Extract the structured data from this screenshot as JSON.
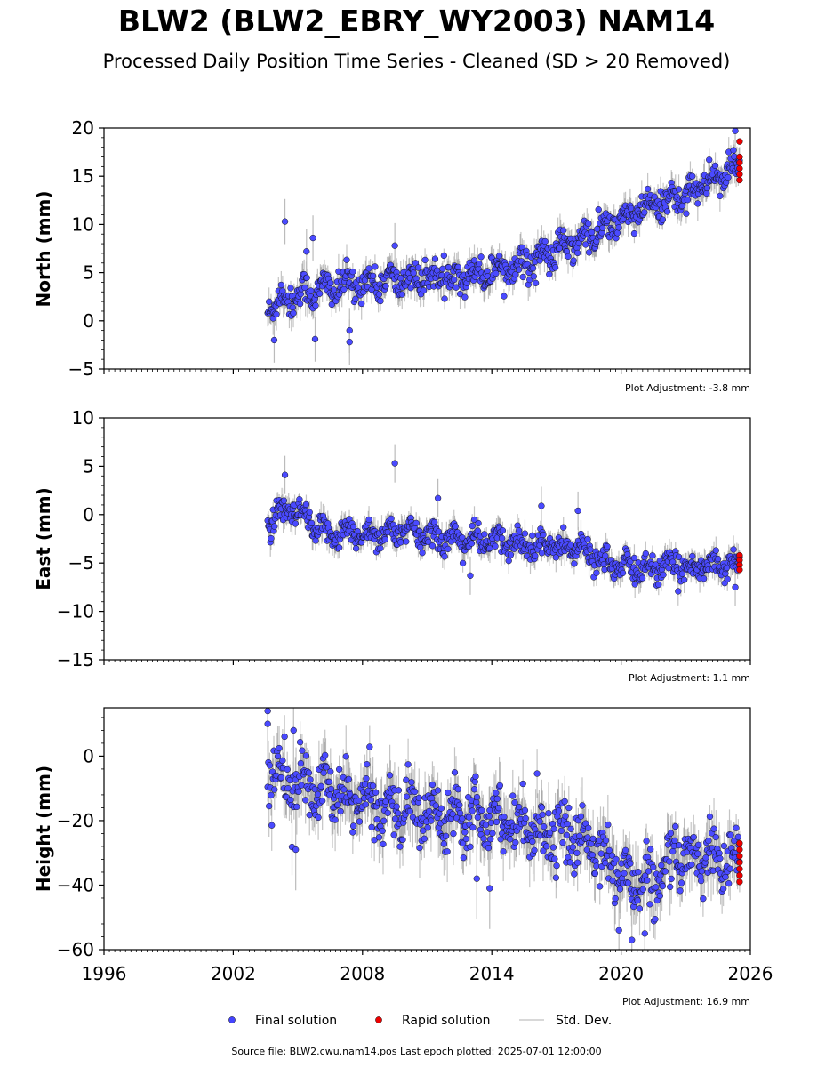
{
  "title": "BLW2 (BLW2_EBRY_WY2003) NAM14",
  "subtitle": "Processed Daily Position Time Series - Cleaned (SD > 20 Removed)",
  "source_note": "Source file: BLW2.cwu.nam14.pos  Last epoch plotted: 2025-07-01 12:00:00",
  "legend": {
    "placement": "bottom-center",
    "items": [
      {
        "label": "Final solution",
        "color": "#4444ff",
        "kind": "dot"
      },
      {
        "label": "Rapid solution",
        "color": "#ee0000",
        "kind": "dot"
      },
      {
        "label": "Std. Dev.",
        "color": "#cccccc",
        "kind": "line"
      }
    ]
  },
  "colors": {
    "final": "#4a4aff",
    "rapid": "#ee0000",
    "errorbar": "#bbbbbb",
    "outline": "#111111"
  },
  "chart_data": [
    {
      "type": "scatter",
      "ylabel": "North (mm)",
      "xlim": [
        1996,
        2026
      ],
      "ylim": [
        -5,
        20
      ],
      "yticks": [
        -5,
        0,
        5,
        10,
        15,
        20
      ],
      "xticks": [
        1996,
        2002,
        2008,
        2014,
        2020,
        2026
      ],
      "show_x_tick_labels": false,
      "grid": false,
      "adjustment_text": "Plot Adjustment: -3.8 mm",
      "final_trend": [
        [
          2003.6,
          1.5
        ],
        [
          2005.0,
          2.8
        ],
        [
          2007.5,
          3.8
        ],
        [
          2010.0,
          4.3
        ],
        [
          2012.0,
          4.6
        ],
        [
          2014.0,
          5.2
        ],
        [
          2016.0,
          6.3
        ],
        [
          2017.8,
          8.0
        ],
        [
          2019.5,
          9.8
        ],
        [
          2021.0,
          11.5
        ],
        [
          2023.0,
          13.2
        ],
        [
          2025.5,
          16.0
        ]
      ],
      "final_scatter_sd": 1.3,
      "final_outliers": [
        [
          2004.4,
          10.3
        ],
        [
          2005.4,
          7.2
        ],
        [
          2005.7,
          8.6
        ],
        [
          2005.8,
          -1.9
        ],
        [
          2007.4,
          -2.2
        ],
        [
          2007.4,
          -1.0
        ],
        [
          2009.5,
          7.8
        ],
        [
          2025.3,
          19.7
        ],
        [
          2003.9,
          -2.0
        ]
      ],
      "rapid_points": [
        [
          2025.5,
          18.6
        ],
        [
          2025.5,
          17.0
        ],
        [
          2025.5,
          16.4
        ],
        [
          2025.5,
          15.8
        ],
        [
          2025.5,
          15.2
        ],
        [
          2025.5,
          14.6
        ]
      ]
    },
    {
      "type": "scatter",
      "ylabel": "East (mm)",
      "xlim": [
        1996,
        2026
      ],
      "ylim": [
        -15,
        10
      ],
      "yticks": [
        -15,
        -10,
        -5,
        0,
        5,
        10
      ],
      "xticks": [
        1996,
        2002,
        2008,
        2014,
        2020,
        2026
      ],
      "show_x_tick_labels": false,
      "grid": false,
      "adjustment_text": "Plot Adjustment: 1.1 mm",
      "final_trend": [
        [
          2003.6,
          -0.8
        ],
        [
          2004.8,
          0.5
        ],
        [
          2006.0,
          -1.8
        ],
        [
          2008.0,
          -2.0
        ],
        [
          2010.0,
          -1.8
        ],
        [
          2012.0,
          -2.5
        ],
        [
          2014.0,
          -2.8
        ],
        [
          2016.0,
          -3.0
        ],
        [
          2018.0,
          -3.5
        ],
        [
          2020.0,
          -5.5
        ],
        [
          2022.0,
          -5.5
        ],
        [
          2025.5,
          -5.0
        ]
      ],
      "final_scatter_sd": 1.1,
      "final_outliers": [
        [
          2004.4,
          4.1
        ],
        [
          2009.5,
          5.3
        ],
        [
          2011.5,
          1.7
        ],
        [
          2018.0,
          0.4
        ],
        [
          2016.3,
          0.9
        ],
        [
          2013.0,
          -6.3
        ],
        [
          2025.3,
          -7.5
        ]
      ],
      "rapid_points": [
        [
          2025.5,
          -4.2
        ],
        [
          2025.5,
          -4.7
        ],
        [
          2025.5,
          -5.2
        ],
        [
          2025.5,
          -5.7
        ]
      ]
    },
    {
      "type": "scatter",
      "ylabel": "Height (mm)",
      "xlim": [
        1996,
        2026
      ],
      "ylim": [
        -60,
        15
      ],
      "yticks": [
        -60,
        -40,
        -20,
        0
      ],
      "xticks": [
        1996,
        2002,
        2008,
        2014,
        2020,
        2026
      ],
      "xtick_labels": [
        "1996",
        "2002",
        "2008",
        "2014",
        "2020",
        "2026"
      ],
      "show_x_tick_labels": true,
      "grid": false,
      "adjustment_text": "Plot Adjustment: 16.9 mm",
      "final_trend": [
        [
          2003.6,
          -5.0
        ],
        [
          2005.0,
          -9.0
        ],
        [
          2008.0,
          -14.0
        ],
        [
          2011.0,
          -18.0
        ],
        [
          2013.0,
          -17.0
        ],
        [
          2015.0,
          -20.0
        ],
        [
          2017.0,
          -24.0
        ],
        [
          2019.0,
          -28.0
        ],
        [
          2020.0,
          -38.0
        ],
        [
          2021.5,
          -40.0
        ],
        [
          2023.0,
          -30.0
        ],
        [
          2025.5,
          -33.0
        ]
      ],
      "final_scatter_sd": 7.0,
      "final_outliers": [
        [
          2003.6,
          14.0
        ],
        [
          2003.6,
          10.0
        ],
        [
          2004.8,
          8.0
        ],
        [
          2013.3,
          -38.0
        ],
        [
          2013.9,
          -41.0
        ],
        [
          2020.5,
          -57.0
        ],
        [
          2021.1,
          -55.0
        ],
        [
          2019.9,
          -54.0
        ],
        [
          2004.9,
          -29.0
        ]
      ],
      "rapid_points": [
        [
          2025.5,
          -27.0
        ],
        [
          2025.5,
          -29.0
        ],
        [
          2025.5,
          -31.0
        ],
        [
          2025.5,
          -33.0
        ],
        [
          2025.5,
          -35.0
        ],
        [
          2025.5,
          -37.0
        ],
        [
          2025.5,
          -39.0
        ]
      ]
    }
  ]
}
